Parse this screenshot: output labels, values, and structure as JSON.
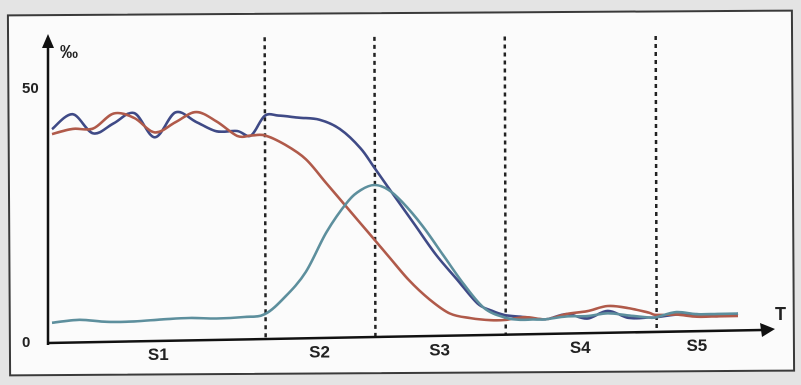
{
  "chart_data": {
    "type": "line",
    "title": "",
    "xlabel": "T",
    "ylabel": "‰",
    "ylim": [
      0,
      50
    ],
    "yticks": [
      "0",
      "50"
    ],
    "x_range": [
      0,
      100
    ],
    "stages": [
      "S1",
      "S2",
      "S3",
      "S4",
      "S5"
    ],
    "stage_boundaries": [
      31,
      47,
      66,
      88
    ],
    "grid": false,
    "legend": "none",
    "series": [
      {
        "color": "#3f4a86",
        "x": [
          0,
          3,
          6,
          9,
          12,
          15,
          18,
          21,
          24,
          27,
          29,
          31,
          33,
          36,
          39,
          42,
          45,
          47,
          50,
          53,
          56,
          59,
          62,
          64,
          66,
          69,
          72,
          75,
          78,
          81,
          84,
          87,
          88,
          91,
          94,
          97,
          100
        ],
        "y": [
          42,
          45,
          41,
          43,
          45,
          40,
          45,
          43,
          41,
          41,
          40,
          44,
          44,
          43.5,
          43,
          41,
          37,
          33,
          27,
          21,
          15,
          10,
          5,
          3.5,
          2.5,
          2,
          1.5,
          2.5,
          1.5,
          3,
          1.5,
          1.5,
          1.5,
          2,
          2,
          1.5,
          2
        ]
      },
      {
        "color": "#b05a4a",
        "x": [
          0,
          3,
          6,
          9,
          12,
          15,
          18,
          21,
          24,
          27,
          29,
          31,
          34,
          37,
          40,
          43,
          46,
          49,
          52,
          55,
          58,
          61,
          64,
          66,
          69,
          72,
          75,
          78,
          81,
          84,
          87,
          88,
          91,
          94,
          97,
          100
        ],
        "y": [
          41,
          42,
          42,
          45,
          44,
          41,
          43,
          45,
          43,
          40,
          40,
          40,
          38,
          35,
          30,
          25,
          20,
          15,
          10,
          6,
          3,
          2,
          1.5,
          1.5,
          2,
          1.5,
          2.5,
          3,
          4,
          3.5,
          2.5,
          2,
          2,
          1.5,
          1.5,
          1.5
        ]
      },
      {
        "color": "#5d8f9d",
        "x": [
          0,
          4,
          8,
          12,
          16,
          20,
          24,
          28,
          31,
          34,
          37,
          40,
          43,
          45,
          47,
          49,
          51,
          54,
          57,
          60,
          63,
          66,
          68,
          70,
          72,
          75,
          78,
          81,
          84,
          87,
          88,
          91,
          94,
          97,
          100
        ],
        "y": [
          2.5,
          3,
          2.5,
          2.5,
          2.8,
          3,
          2.8,
          3,
          3.5,
          7,
          12,
          20,
          26,
          28.5,
          29.5,
          28.5,
          26,
          21,
          15,
          9,
          4,
          2,
          1.5,
          1.5,
          1.5,
          2,
          2,
          2.5,
          2,
          1.5,
          1.5,
          2.5,
          2,
          2,
          2
        ]
      }
    ]
  }
}
